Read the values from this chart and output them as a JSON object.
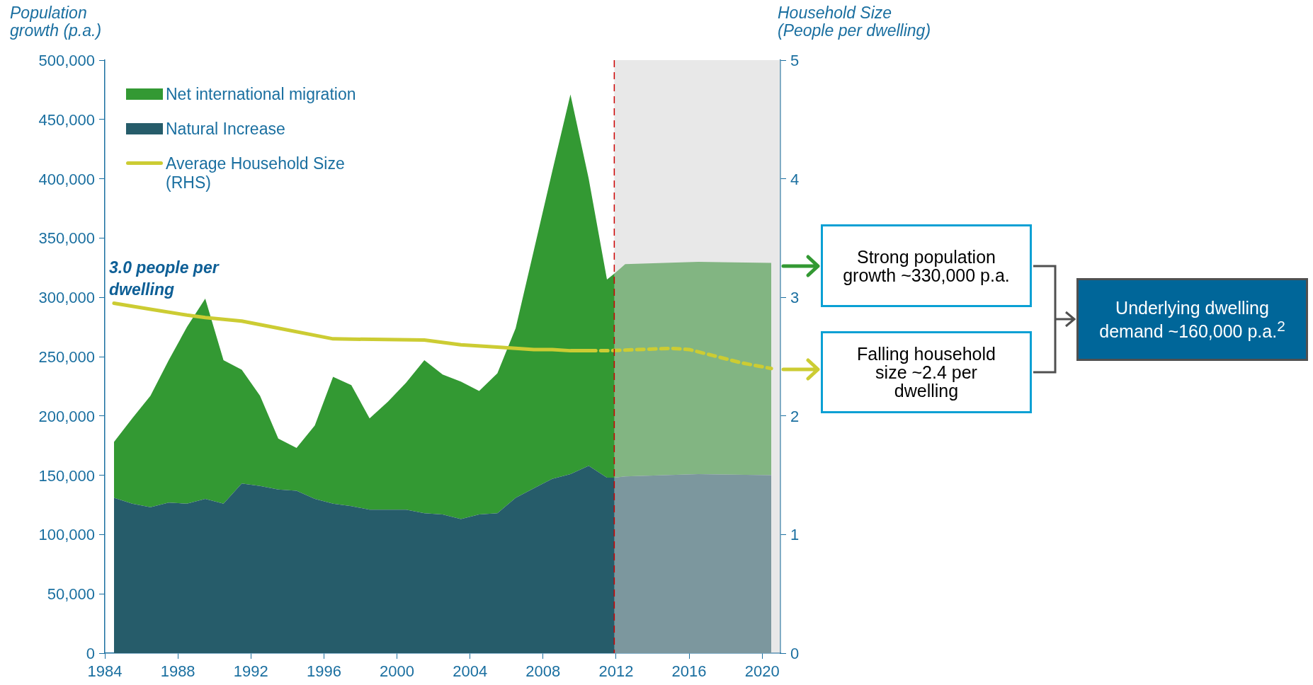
{
  "chart_data": {
    "type": "area",
    "stacked": true,
    "ylabel": "Population growth (p.a.)",
    "y2label": "Household Size (People per dwelling)",
    "x": [
      1984.5,
      1985.5,
      1986.5,
      1987.5,
      1988.5,
      1989.5,
      1990.5,
      1991.5,
      1992.5,
      1993.5,
      1994.5,
      1995.5,
      1996.5,
      1997.5,
      1998.5,
      1999.5,
      2000.5,
      2001.5,
      2002.5,
      2003.5,
      2004.5,
      2005.5,
      2006.5,
      2007.5,
      2008.5,
      2009.5,
      2010.5,
      2011.5,
      2011.9,
      2012.5,
      2016.5,
      2020.5
    ],
    "series": [
      {
        "name": "Natural Increase",
        "color": "#265c6a",
        "values": [
          131000,
          126000,
          123000,
          127000,
          126000,
          130000,
          126000,
          143000,
          141000,
          138000,
          137000,
          130000,
          126000,
          124000,
          121000,
          121000,
          121000,
          118000,
          117000,
          113000,
          117000,
          118000,
          131000,
          139000,
          147000,
          151000,
          158000,
          148000,
          148000,
          149000,
          151000,
          150000
        ]
      },
      {
        "name": "Net international migration",
        "color": "#339933",
        "values": [
          47000,
          72000,
          94000,
          120000,
          149000,
          169000,
          121000,
          96000,
          76000,
          43000,
          36000,
          62000,
          107000,
          102000,
          77000,
          91000,
          107000,
          129000,
          118000,
          116000,
          104000,
          118000,
          143000,
          201000,
          259000,
          320000,
          242000,
          167000,
          172000,
          179000,
          179000,
          179000
        ]
      },
      {
        "name": "Average Household Size (RHS)",
        "type": "line",
        "axis": "y2",
        "color": "#cccc33",
        "x": [
          1984.5,
          1986.5,
          1988.5,
          1989.5,
          1991.5,
          1993.5,
          1996.5,
          2001.5,
          2003.5,
          2005.5,
          2007.5,
          2008.5,
          2009.5,
          2010.5
        ],
        "values": [
          2.95,
          2.9,
          2.85,
          2.83,
          2.8,
          2.74,
          2.65,
          2.64,
          2.6,
          2.58,
          2.56,
          2.56,
          2.55,
          2.55
        ]
      },
      {
        "type": "line",
        "axis": "y2",
        "color": "#cccc33",
        "line_style": "dashed",
        "x": [
          2010.5,
          2011.5,
          2015,
          2016,
          2017.3,
          2018.8,
          2020.5
        ],
        "values": [
          2.55,
          2.55,
          2.57,
          2.56,
          2.51,
          2.45,
          2.4
        ]
      }
    ],
    "xlim": [
      1984,
      2021
    ],
    "xticks": [
      1984,
      1988,
      1992,
      1996,
      2000,
      2004,
      2008,
      2012,
      2016,
      2020
    ],
    "ylim": [
      0,
      500000
    ],
    "yticks": [
      0,
      {
        "value": 50000,
        "label": "50,000"
      },
      {
        "value": 100000,
        "label": "100,000"
      },
      {
        "value": 150000,
        "label": "150,000"
      },
      {
        "value": 200000,
        "label": "200,000"
      },
      {
        "value": 250000,
        "label": "250,000"
      },
      {
        "value": 300000,
        "label": "300,000"
      },
      {
        "value": 350000,
        "label": "350,000"
      },
      {
        "value": 400000,
        "label": "400,000"
      },
      {
        "value": 450000,
        "label": "450,000"
      },
      {
        "value": 500000,
        "label": "500,000"
      }
    ],
    "y2lim": [
      0,
      5
    ],
    "y2ticks": [
      0,
      1,
      2,
      3,
      4,
      5
    ],
    "ref_lines": [
      {
        "axis": "x",
        "value": 2011.9,
        "color": "#cc0000",
        "line_style": "dashed"
      }
    ],
    "bands": [
      {
        "axis": "x",
        "from": 2011.9,
        "to": 2021,
        "color": "#d2d2d2"
      }
    ],
    "legend": "top left",
    "marker": "none",
    "line_style": "solid",
    "annotations": [
      "3.0 people per dwelling",
      "Strong population growth ~330,000 p.a.",
      "Falling household size ~2.4 per dwelling",
      "Underlying dwelling demand ~160,000 p.a.$^{2}$"
    ]
  }
}
